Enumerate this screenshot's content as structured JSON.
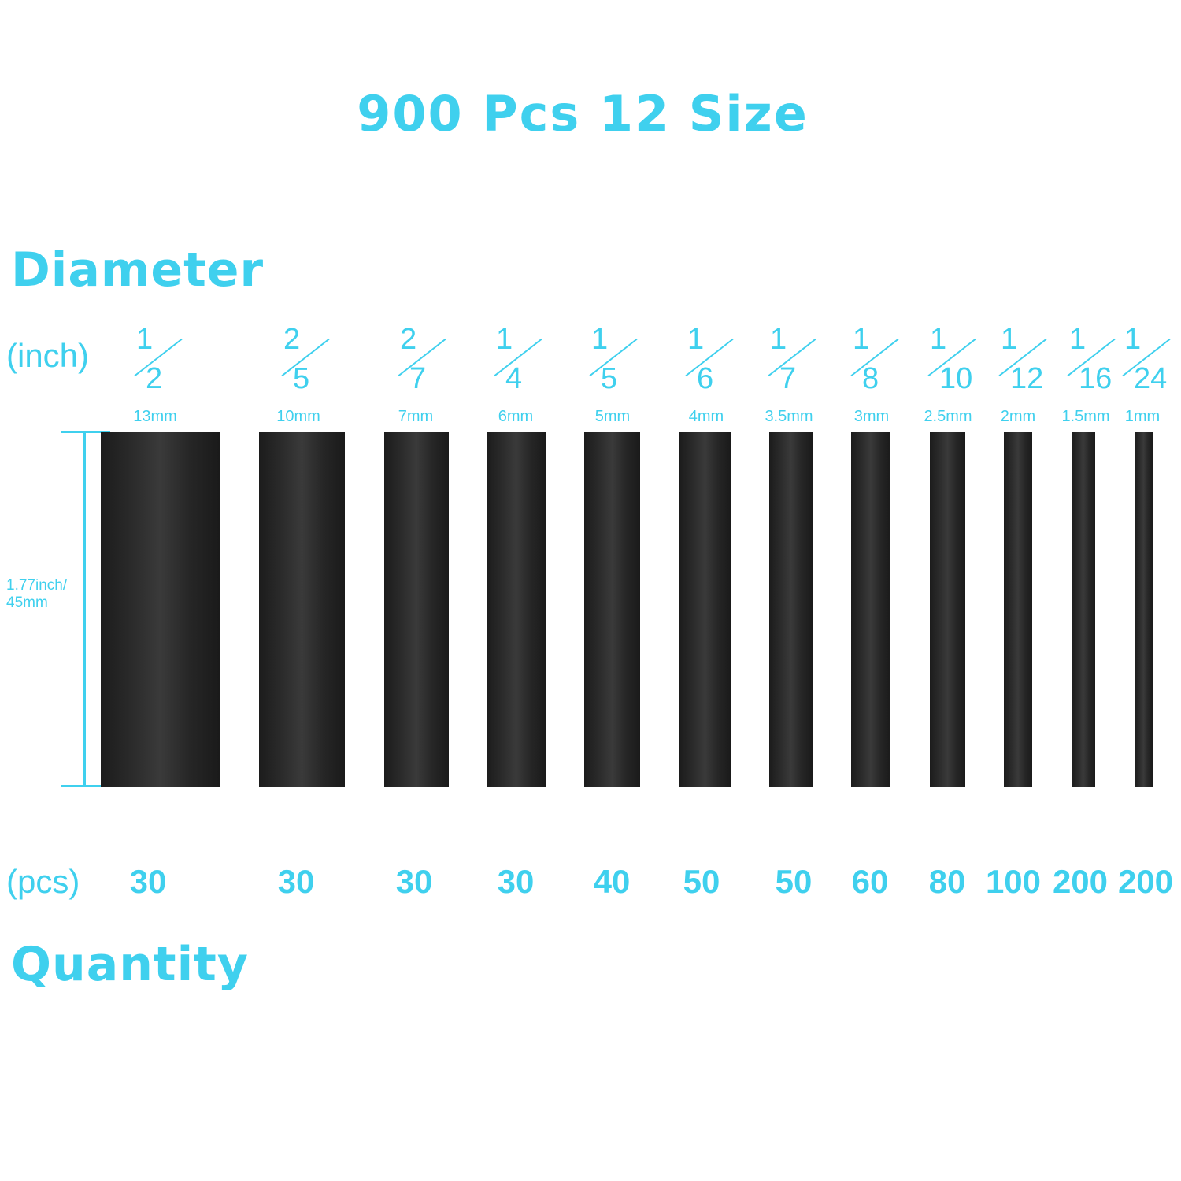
{
  "title": "900 Pcs 12 Size",
  "diameter_heading": "Diameter",
  "quantity_heading": "Quantity",
  "inch_label": "(inch)",
  "pcs_label": "(pcs)",
  "length_label": {
    "line1": "1.77inch/",
    "line2": "45mm"
  },
  "accent_color": "#3fd0ee",
  "sizes": [
    {
      "num": "1",
      "den": "2",
      "mm": "13mm",
      "pcs": "30"
    },
    {
      "num": "2",
      "den": "5",
      "mm": "10mm",
      "pcs": "30"
    },
    {
      "num": "2",
      "den": "7",
      "mm": "7mm",
      "pcs": "30"
    },
    {
      "num": "1",
      "den": "4",
      "mm": "6mm",
      "pcs": "30"
    },
    {
      "num": "1",
      "den": "5",
      "mm": "5mm",
      "pcs": "40"
    },
    {
      "num": "1",
      "den": "6",
      "mm": "4mm",
      "pcs": "50"
    },
    {
      "num": "1",
      "den": "7",
      "mm": "3.5mm",
      "pcs": "50"
    },
    {
      "num": "1",
      "den": "8",
      "mm": "3mm",
      "pcs": "60"
    },
    {
      "num": "1",
      "den": "10",
      "mm": "2.5mm",
      "pcs": "80"
    },
    {
      "num": "1",
      "den": "12",
      "mm": "2mm",
      "pcs": "100"
    },
    {
      "num": "1",
      "den": "16",
      "mm": "1.5mm",
      "pcs": "200"
    },
    {
      "num": "1",
      "den": "24",
      "mm": "1mm",
      "pcs": "200"
    }
  ]
}
